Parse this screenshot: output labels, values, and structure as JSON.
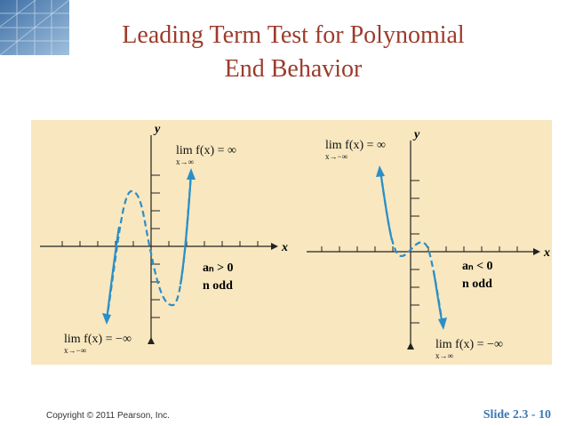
{
  "header": {
    "title_lines": [
      "Leading Term Test for Polynomial",
      "End Behavior"
    ]
  },
  "figure": {
    "panels": [
      {
        "y_axis_label": "y",
        "x_axis_label": "x",
        "upper_limit": {
          "text": "lim f(x) = ∞",
          "subscript": "x→∞"
        },
        "lower_limit": {
          "text": "lim f(x) = −∞",
          "subscript": "x→−∞"
        },
        "conditions": [
          "aₙ > 0",
          "n odd"
        ]
      },
      {
        "y_axis_label": "y",
        "x_axis_label": "x",
        "upper_limit": {
          "text": "lim f(x) = ∞",
          "subscript": "x→−∞"
        },
        "lower_limit": {
          "text": "lim f(x) = −∞",
          "subscript": "x→∞"
        },
        "conditions": [
          "aₙ < 0",
          "n odd"
        ]
      }
    ]
  },
  "footer": {
    "copyright": "Copyright © 2011 Pearson, Inc.",
    "slide_number": "Slide 2.3 - 10"
  }
}
